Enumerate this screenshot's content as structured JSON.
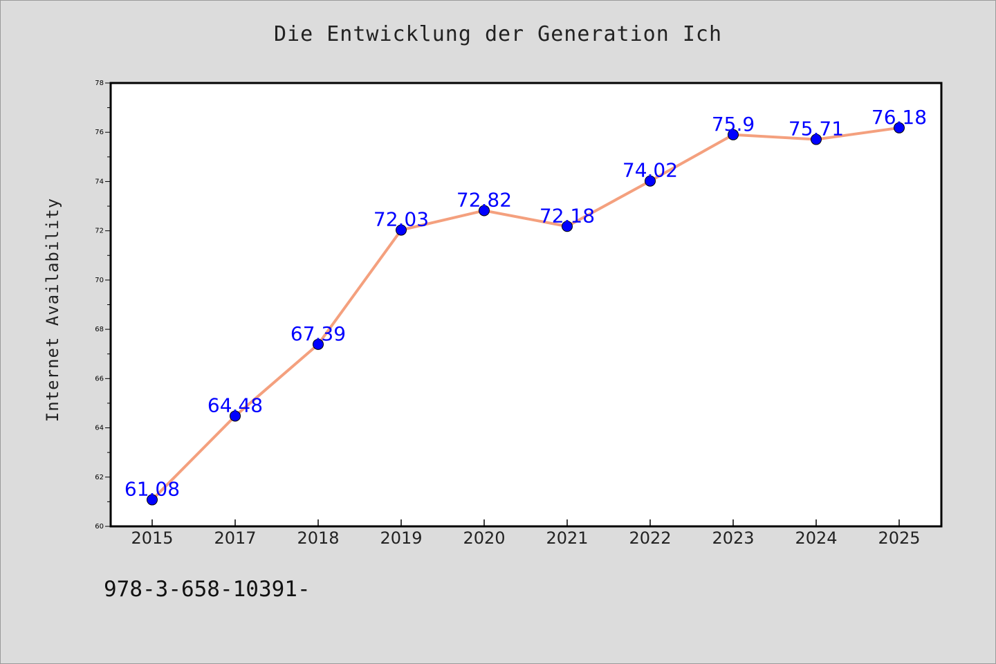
{
  "chart_data": {
    "type": "line",
    "title": "Die Entwicklung der Generation Ich",
    "xlabel": "",
    "ylabel": "Internet Availability",
    "categories": [
      "2015",
      "2017",
      "2018",
      "2019",
      "2020",
      "2021",
      "2022",
      "2023",
      "2024",
      "2025"
    ],
    "values": [
      61.08,
      64.48,
      67.39,
      72.03,
      72.82,
      72.18,
      74.02,
      75.9,
      75.71,
      76.18
    ],
    "data_labels": [
      "61.08",
      "64.48",
      "67.39",
      "72.03",
      "72.82",
      "72.18",
      "74.02",
      "75.9",
      "75.71",
      "76.18"
    ],
    "ylim": [
      60,
      78
    ],
    "yticks": [
      60,
      62,
      64,
      66,
      68,
      70,
      72,
      74,
      76,
      78
    ],
    "grid": false,
    "line_color": "#f4a07e",
    "marker_color": "#0000ff",
    "label_color": "#0000ff"
  },
  "footer": {
    "code": "978-3-658-10391-"
  }
}
